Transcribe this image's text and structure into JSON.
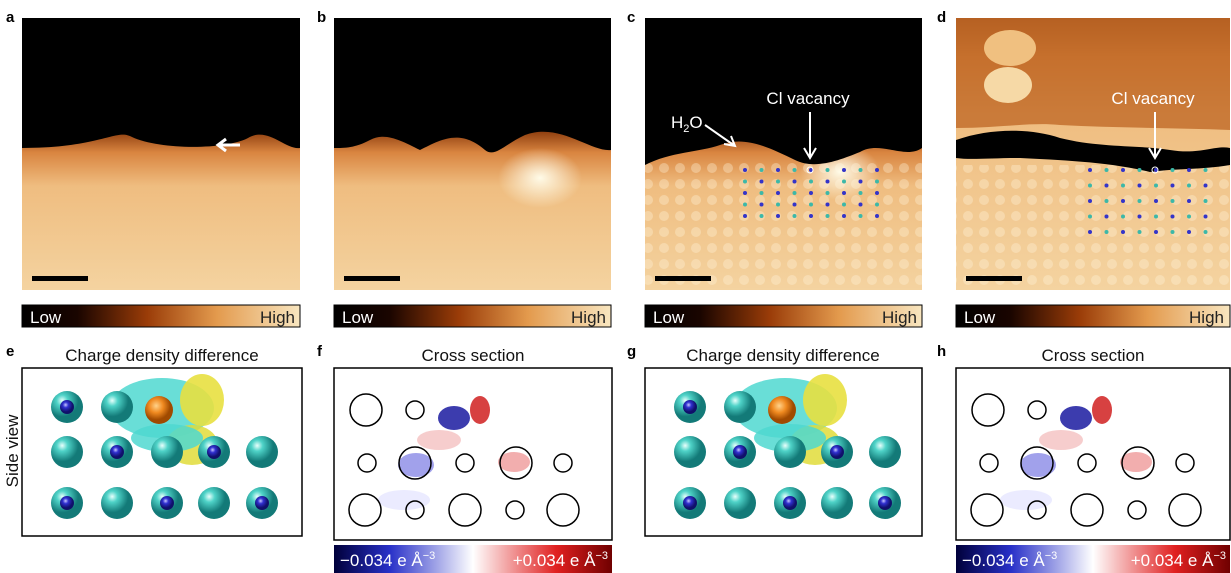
{
  "top_panels": [
    {
      "label": "a",
      "low": "Low",
      "high": "High"
    },
    {
      "label": "b",
      "low": "Low",
      "high": "High"
    },
    {
      "label": "c",
      "low": "Low",
      "high": "High",
      "water": {
        "main": "H",
        "sub": "2",
        "rest": "O"
      },
      "vacancy": "Cl vacancy"
    },
    {
      "label": "d",
      "low": "Low",
      "high": "High",
      "vacancy": "Cl vacancy"
    }
  ],
  "bottom_panels": [
    {
      "label": "e",
      "title": "Charge density difference",
      "side_label": "Side view"
    },
    {
      "label": "f",
      "title": "Cross section",
      "colorbar": {
        "min": {
          "text": "−0.034 e Å",
          "sup": "−3"
        },
        "max": {
          "text": "+0.034 e Å",
          "sup": "−3"
        }
      }
    },
    {
      "label": "g",
      "title": "Charge density difference"
    },
    {
      "label": "h",
      "title": "Cross section",
      "colorbar": {
        "min": {
          "text": "−0.034 e Å",
          "sup": "−3"
        },
        "max": {
          "text": "+0.034 e Å",
          "sup": "−3"
        }
      }
    }
  ]
}
